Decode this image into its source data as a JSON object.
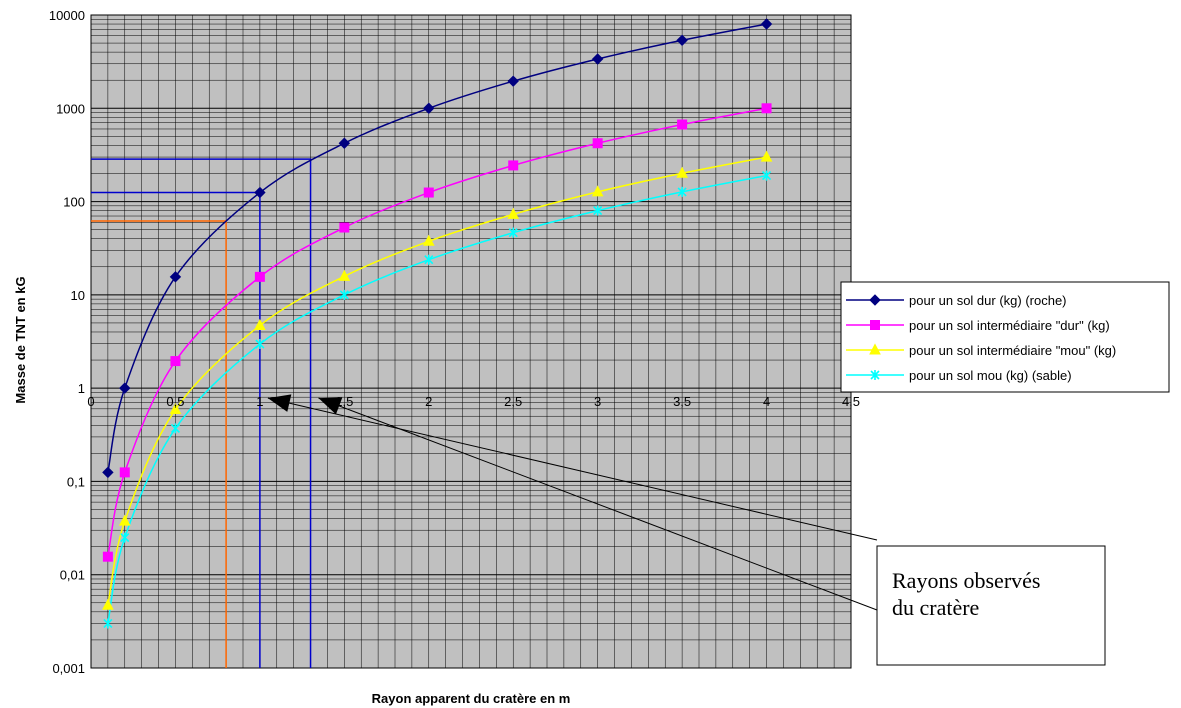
{
  "chart_data": {
    "type": "line",
    "x_axis": {
      "label": "Rayon  apparent du cratère en m",
      "range": [
        0,
        4.5
      ],
      "ticks": [
        "0",
        "0,5",
        "1",
        "1,5",
        "2",
        "2,5",
        "3",
        "3,5",
        "4",
        "4,5"
      ],
      "tick_values": [
        0,
        0.5,
        1,
        1.5,
        2,
        2.5,
        3,
        3.5,
        4,
        4.5
      ]
    },
    "y_axis": {
      "label": "Masse de TNT en kG",
      "scale": "log",
      "range": [
        0.001,
        10000
      ],
      "ticks": [
        "10000",
        "1000",
        "100",
        "10",
        "1",
        "0,1",
        "0,01",
        "0,001"
      ],
      "tick_values": [
        10000,
        1000,
        100,
        10,
        1,
        0.1,
        0.01,
        0.001
      ]
    },
    "grid": true,
    "legend_position": "right",
    "series": [
      {
        "name": "pour un sol dur (kg) (roche)",
        "color": "#000080",
        "marker": "diamond",
        "x": [
          0.1,
          0.2,
          0.5,
          1,
          1.5,
          2,
          2.5,
          3,
          3.5,
          4
        ],
        "y": [
          0.125,
          1,
          15.6,
          125,
          422,
          1000,
          1953,
          3375,
          5359,
          8000
        ]
      },
      {
        "name": "pour un sol intermédiaire \"dur\" (kg)",
        "color": "#ff00ff",
        "marker": "square",
        "x": [
          0.1,
          0.2,
          0.5,
          1,
          1.5,
          2,
          2.5,
          3,
          3.5,
          4
        ],
        "y": [
          0.0156,
          0.125,
          1.95,
          15.6,
          52.7,
          125,
          244,
          422,
          670,
          1000
        ]
      },
      {
        "name": "pour un sol intermédiaire \"mou\" (kg)",
        "color": "#ffff00",
        "marker": "triangle",
        "x": [
          0.1,
          0.2,
          0.5,
          1,
          1.5,
          2,
          2.5,
          3,
          3.5,
          4
        ],
        "y": [
          0.0047,
          0.0375,
          0.59,
          4.7,
          15.8,
          37.5,
          73,
          127,
          201,
          300
        ]
      },
      {
        "name": "pour un sol mou (kg) (sable)",
        "color": "#00ffff",
        "marker": "x",
        "x": [
          0.1,
          0.2,
          0.5,
          1,
          1.5,
          2,
          2.5,
          3,
          3.5,
          4
        ],
        "y": [
          0.003,
          0.025,
          0.37,
          2.97,
          10,
          23.8,
          46.4,
          80,
          127,
          190
        ]
      }
    ],
    "reference_lines": [
      {
        "x": 0.8,
        "y": 62,
        "color": "#ff6600"
      },
      {
        "x": 1,
        "y": 125,
        "color": "#0000cc"
      },
      {
        "x": 1.3,
        "y": 285,
        "color": "#0000cc"
      }
    ],
    "annotation": {
      "text_line1": "Rayons observés",
      "text_line2": "du cratère",
      "arrow_targets": [
        1,
        1.3
      ]
    }
  }
}
